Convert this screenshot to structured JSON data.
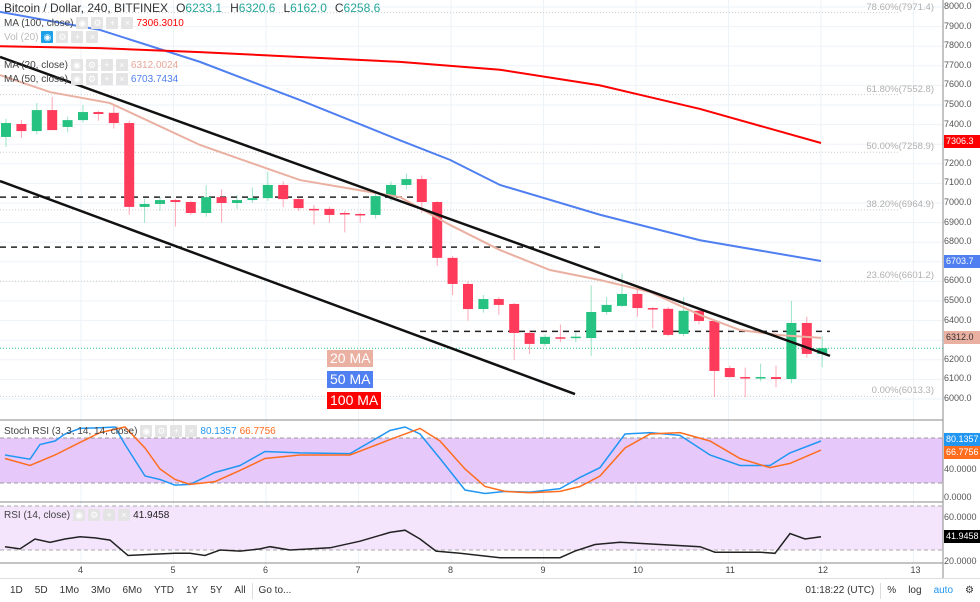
{
  "header": {
    "symbol": "Bitcoin / Dollar, 240, BITFINEX",
    "o_label": "O",
    "o": "6233.1",
    "h_label": "H",
    "h": "6320.6",
    "l_label": "L",
    "l": "6162.0",
    "c_label": "C",
    "c": "6258.6"
  },
  "legends": [
    {
      "label": "MA (100, close)",
      "value": "7306.3010",
      "color": "#ff0000"
    },
    {
      "label": "Vol (20)",
      "value": "",
      "color": "#888"
    },
    {
      "label": "MA (20, close)",
      "value": "6312.0024",
      "color": "#e8a898"
    },
    {
      "label": "MA (50, close)",
      "value": "6703.7434",
      "color": "#4f7ff0"
    }
  ],
  "price_axis": [
    "8000.0",
    "7900.0",
    "7800.0",
    "7700.0",
    "7600.0",
    "7500.0",
    "7400.0",
    "7200.0",
    "7100.0",
    "7000.0",
    "6900.0",
    "6800.0",
    "6600.0",
    "6500.0",
    "6400.0",
    "6200.0",
    "6100.0",
    "6000.0"
  ],
  "price_values": [
    8000,
    7900,
    7800,
    7700,
    7600,
    7500,
    7400,
    7200,
    7100,
    7000,
    6900,
    6800,
    6600,
    6500,
    6400,
    6200,
    6100,
    6000
  ],
  "price_tags": {
    "ma100": "7306.3",
    "ma50": "6703.7",
    "ma20": "6312.0"
  },
  "fib": [
    {
      "label": "78.60%(7971.4)",
      "p": 7971.4
    },
    {
      "label": "61.80%(7552.8)",
      "p": 7552.8
    },
    {
      "label": "50.00%(7258.9)",
      "p": 7258.9
    },
    {
      "label": "38.20%(6964.9)",
      "p": 6964.9
    },
    {
      "label": "23.60%(6601.2)",
      "p": 6601.2
    },
    {
      "label": "0.00%(6013.3)",
      "p": 6013.3
    }
  ],
  "ma_labels": {
    "ma20": "20 MA",
    "ma50": "50 MA",
    "ma100": "100 MA"
  },
  "colors": {
    "up": "#26c281",
    "down": "#ff3b5c",
    "ma20": "#eab0a2",
    "ma50": "#4f7ff0",
    "ma100": "#ff0000",
    "stochK": "#2196f3",
    "stochD": "#ff6d1f"
  },
  "candles": [
    [
      7337,
      7430,
      7286,
      7408
    ],
    [
      7403,
      7423,
      7332,
      7367
    ],
    [
      7367,
      7510,
      7350,
      7474
    ],
    [
      7474,
      7541,
      7372,
      7372
    ],
    [
      7388,
      7440,
      7360,
      7423
    ],
    [
      7423,
      7500,
      7410,
      7464
    ],
    [
      7464,
      7470,
      7420,
      7454
    ],
    [
      7460,
      7500,
      7380,
      7408
    ],
    [
      7408,
      7420,
      6940,
      6980
    ],
    [
      6980,
      7020,
      6900,
      6995
    ],
    [
      6995,
      7030,
      6960,
      7015
    ],
    [
      7015,
      7020,
      6880,
      7005
    ],
    [
      7005,
      7010,
      6940,
      6949
    ],
    [
      6949,
      7090,
      6930,
      7030
    ],
    [
      7030,
      7070,
      6900,
      7000
    ],
    [
      7000,
      7040,
      6970,
      7015
    ],
    [
      7015,
      7080,
      7000,
      7025
    ],
    [
      7025,
      7160,
      7010,
      7092
    ],
    [
      7092,
      7110,
      6980,
      7020
    ],
    [
      7020,
      7030,
      6960,
      6974
    ],
    [
      6970,
      6990,
      6890,
      6965
    ],
    [
      6970,
      6980,
      6900,
      6939
    ],
    [
      6949,
      6960,
      6850,
      6944
    ],
    [
      6944,
      6950,
      6900,
      6939
    ],
    [
      6939,
      7060,
      6920,
      7035
    ],
    [
      7030,
      7110,
      7010,
      7092
    ],
    [
      7092,
      7150,
      7070,
      7122
    ],
    [
      7122,
      7140,
      6950,
      7005
    ],
    [
      7005,
      7010,
      6680,
      6720
    ],
    [
      6720,
      6730,
      6530,
      6587
    ],
    [
      6587,
      6600,
      6400,
      6459
    ],
    [
      6459,
      6530,
      6440,
      6510
    ],
    [
      6510,
      6520,
      6430,
      6480
    ],
    [
      6485,
      6490,
      6200,
      6337
    ],
    [
      6337,
      6350,
      6230,
      6281
    ],
    [
      6281,
      6330,
      6270,
      6317
    ],
    [
      6315,
      6380,
      6290,
      6311
    ],
    [
      6311,
      6340,
      6290,
      6318
    ],
    [
      6311,
      6580,
      6220,
      6444
    ],
    [
      6444,
      6520,
      6430,
      6480
    ],
    [
      6475,
      6640,
      6470,
      6536
    ],
    [
      6536,
      6570,
      6420,
      6464
    ],
    [
      6464,
      6470,
      6360,
      6460
    ],
    [
      6460,
      6470,
      6320,
      6327
    ],
    [
      6332,
      6520,
      6320,
      6450
    ],
    [
      6450,
      6460,
      6380,
      6398
    ],
    [
      6398,
      6400,
      6010,
      6143
    ],
    [
      6158,
      6170,
      6110,
      6112
    ],
    [
      6112,
      6160,
      6010,
      6108
    ],
    [
      6105,
      6180,
      6090,
      6112
    ],
    [
      6112,
      6170,
      6060,
      6102
    ],
    [
      6102,
      6500,
      6080,
      6388
    ],
    [
      6388,
      6420,
      6210,
      6230
    ],
    [
      6230,
      6320,
      6162,
      6259
    ]
  ],
  "ma_lines": {
    "ma100": [
      [
        0,
        7800
      ],
      [
        100,
        7790
      ],
      [
        200,
        7770
      ],
      [
        300,
        7745
      ],
      [
        400,
        7720
      ],
      [
        500,
        7680
      ],
      [
        600,
        7600
      ],
      [
        700,
        7480
      ],
      [
        821,
        7306
      ]
    ],
    "ma50": [
      [
        0,
        7975
      ],
      [
        100,
        7883
      ],
      [
        200,
        7720
      ],
      [
        300,
        7525
      ],
      [
        400,
        7320
      ],
      [
        450,
        7220
      ],
      [
        500,
        7092
      ],
      [
        600,
        6940
      ],
      [
        700,
        6810
      ],
      [
        821,
        6704
      ]
    ],
    "ma20": [
      [
        0,
        7653
      ],
      [
        50,
        7566
      ],
      [
        110,
        7510
      ],
      [
        200,
        7296
      ],
      [
        300,
        7117
      ],
      [
        400,
        7030
      ],
      [
        450,
        6888
      ],
      [
        500,
        6760
      ],
      [
        550,
        6658
      ],
      [
        600,
        6607
      ],
      [
        650,
        6546
      ],
      [
        700,
        6429
      ],
      [
        740,
        6352
      ],
      [
        780,
        6326
      ],
      [
        821,
        6312
      ]
    ]
  },
  "trend_lines": [
    [
      [
        0,
        7745
      ],
      [
        830,
        6220
      ]
    ],
    [
      [
        0,
        7112
      ],
      [
        575,
        6025
      ]
    ]
  ],
  "dashed_levels": [
    [
      0,
      420,
      7030
    ],
    [
      0,
      605,
      6775
    ],
    [
      420,
      830,
      6345
    ]
  ],
  "current_price": 6259,
  "stoch": {
    "label": "Stoch RSI (3, 3, 14, 14, close)",
    "k_value": "80.1357",
    "d_value": "66.7756",
    "axis": [
      "40.0000",
      "0.0000"
    ],
    "k": [
      [
        5,
        60
      ],
      [
        30,
        54
      ],
      [
        40,
        75
      ],
      [
        55,
        80
      ],
      [
        65,
        90
      ],
      [
        80,
        98
      ],
      [
        100,
        99
      ],
      [
        115,
        100
      ],
      [
        125,
        75
      ],
      [
        145,
        30
      ],
      [
        160,
        25
      ],
      [
        175,
        17
      ],
      [
        190,
        18
      ],
      [
        215,
        35
      ],
      [
        240,
        45
      ],
      [
        265,
        65
      ],
      [
        300,
        63
      ],
      [
        350,
        62
      ],
      [
        390,
        95
      ],
      [
        405,
        100
      ],
      [
        420,
        90
      ],
      [
        440,
        55
      ],
      [
        465,
        10
      ],
      [
        485,
        5
      ],
      [
        505,
        8
      ],
      [
        530,
        7
      ],
      [
        560,
        12
      ],
      [
        580,
        28
      ],
      [
        600,
        42
      ],
      [
        625,
        90
      ],
      [
        650,
        92
      ],
      [
        680,
        88
      ],
      [
        710,
        60
      ],
      [
        740,
        45
      ],
      [
        770,
        45
      ],
      [
        790,
        63
      ],
      [
        821,
        80
      ]
    ],
    "d": [
      [
        5,
        55
      ],
      [
        30,
        45
      ],
      [
        55,
        60
      ],
      [
        80,
        78
      ],
      [
        100,
        92
      ],
      [
        125,
        100
      ],
      [
        145,
        70
      ],
      [
        160,
        40
      ],
      [
        175,
        25
      ],
      [
        190,
        18
      ],
      [
        215,
        22
      ],
      [
        240,
        38
      ],
      [
        265,
        55
      ],
      [
        300,
        60
      ],
      [
        350,
        60
      ],
      [
        390,
        82
      ],
      [
        420,
        98
      ],
      [
        440,
        80
      ],
      [
        465,
        40
      ],
      [
        485,
        15
      ],
      [
        505,
        8
      ],
      [
        530,
        6
      ],
      [
        560,
        8
      ],
      [
        580,
        15
      ],
      [
        600,
        30
      ],
      [
        625,
        70
      ],
      [
        650,
        90
      ],
      [
        680,
        92
      ],
      [
        710,
        80
      ],
      [
        740,
        55
      ],
      [
        770,
        42
      ],
      [
        790,
        48
      ],
      [
        821,
        67
      ]
    ]
  },
  "rsi": {
    "label": "RSI (14, close)",
    "value": "41.9458",
    "axis": [
      "60.0000",
      "20.0000"
    ],
    "line": [
      [
        5,
        33
      ],
      [
        20,
        31
      ],
      [
        35,
        40
      ],
      [
        50,
        37
      ],
      [
        65,
        40
      ],
      [
        80,
        42
      ],
      [
        95,
        41
      ],
      [
        110,
        39
      ],
      [
        128,
        25
      ],
      [
        150,
        26
      ],
      [
        175,
        27
      ],
      [
        190,
        27
      ],
      [
        205,
        25
      ],
      [
        220,
        30
      ],
      [
        240,
        29
      ],
      [
        260,
        31
      ],
      [
        270,
        33
      ],
      [
        290,
        30
      ],
      [
        330,
        32
      ],
      [
        360,
        38
      ],
      [
        390,
        46
      ],
      [
        405,
        48
      ],
      [
        420,
        40
      ],
      [
        436,
        29
      ],
      [
        460,
        27
      ],
      [
        500,
        23
      ],
      [
        560,
        23
      ],
      [
        575,
        29
      ],
      [
        595,
        35
      ],
      [
        620,
        37
      ],
      [
        660,
        35
      ],
      [
        700,
        33
      ],
      [
        715,
        28
      ],
      [
        760,
        28
      ],
      [
        775,
        27
      ],
      [
        790,
        45
      ],
      [
        805,
        40
      ],
      [
        821,
        42
      ]
    ]
  },
  "time_axis": [
    {
      "label": "4",
      "d": 4
    },
    {
      "label": "5",
      "d": 5
    },
    {
      "label": "6",
      "d": 6
    },
    {
      "label": "7",
      "d": 7
    },
    {
      "label": "8",
      "d": 8
    },
    {
      "label": "9",
      "d": 9
    },
    {
      "label": "10",
      "d": 10
    },
    {
      "label": "11",
      "d": 11
    },
    {
      "label": "12",
      "d": 12
    },
    {
      "label": "13",
      "d": 13
    }
  ],
  "toolbar": {
    "ranges": [
      "1D",
      "5D",
      "1Mo",
      "3Mo",
      "6Mo",
      "YTD",
      "1Y",
      "5Y",
      "All"
    ],
    "goto": "Go to...",
    "time": "01:18:22 (UTC)",
    "percent": "%",
    "log": "log",
    "auto": "auto"
  }
}
